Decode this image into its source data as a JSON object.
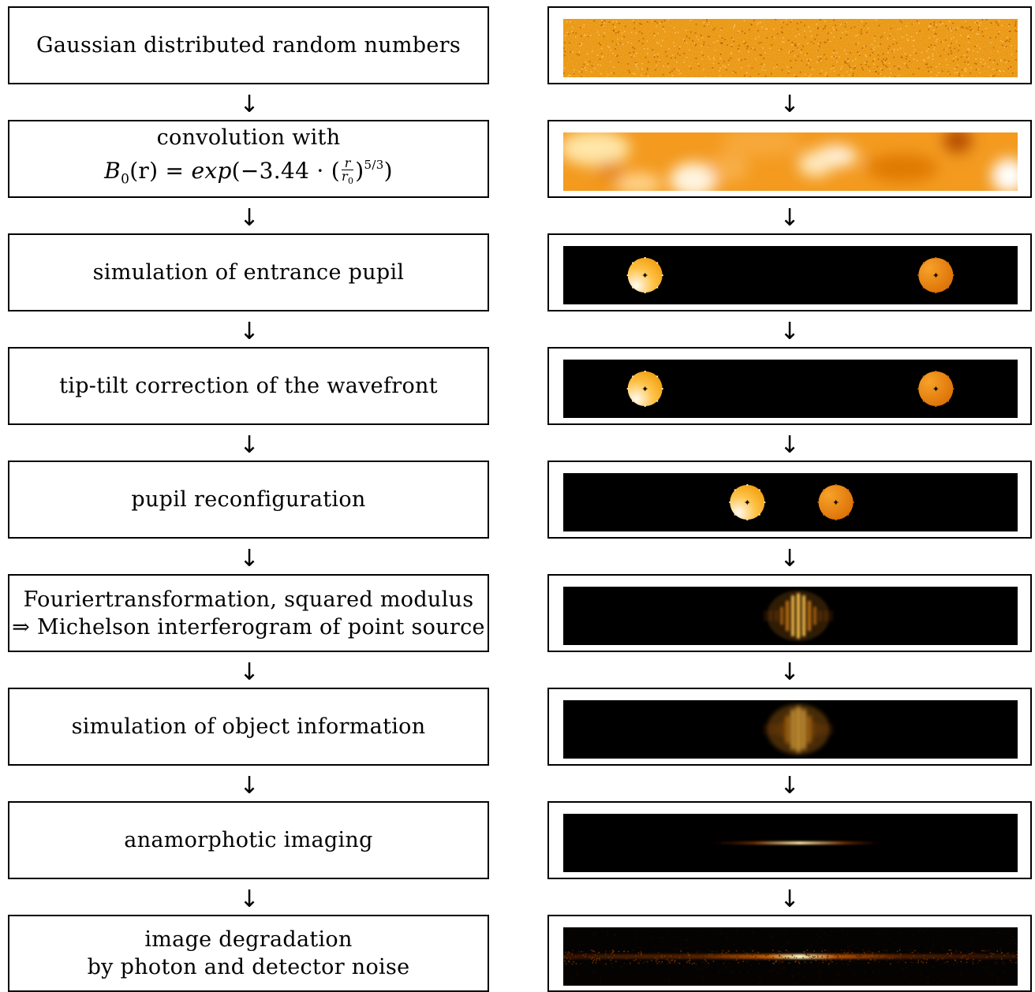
{
  "steps": [
    {
      "lines": [
        "Gaussian distributed random numbers"
      ]
    },
    {
      "lines": [
        "convolution with"
      ],
      "formula": {
        "lhs": "B",
        "sub": "0",
        "arg": "(r) = ",
        "fn": "exp",
        "open": "(−3.44 · (",
        "num": "r",
        "den": "r",
        "den_sub": "0",
        "close": ")",
        "exp_num": "5",
        "exp_den": "3",
        "end": ")"
      }
    },
    {
      "lines": [
        "simulation of entrance pupil"
      ]
    },
    {
      "lines": [
        "tip-tilt correction of the wavefront"
      ]
    },
    {
      "lines": [
        "pupil reconfiguration"
      ]
    },
    {
      "lines": [
        "Fouriertransformation, squared modulus",
        "⇒ Michelson interferogram of point source"
      ]
    },
    {
      "lines": [
        "simulation of object information"
      ]
    },
    {
      "lines": [
        "anamorphotic imaging"
      ]
    },
    {
      "lines": [
        "image degradation",
        "by photon and detector noise"
      ]
    }
  ],
  "arrow_glyph": "↓",
  "colors": {
    "background": "#000000",
    "orange": "#e8820a",
    "light": "#fff3d0",
    "noise": "#e8900f"
  },
  "panels": [
    {
      "kind": "noise"
    },
    {
      "kind": "smooth"
    },
    {
      "kind": "pupils",
      "pupils": [
        0.18,
        0.82
      ]
    },
    {
      "kind": "pupils",
      "pupils": [
        0.18,
        0.82
      ]
    },
    {
      "kind": "pupils",
      "pupils": [
        0.405,
        0.6
      ]
    },
    {
      "kind": "fringes",
      "sharp": true
    },
    {
      "kind": "fringes",
      "sharp": false
    },
    {
      "kind": "line"
    },
    {
      "kind": "noisy-line"
    }
  ]
}
